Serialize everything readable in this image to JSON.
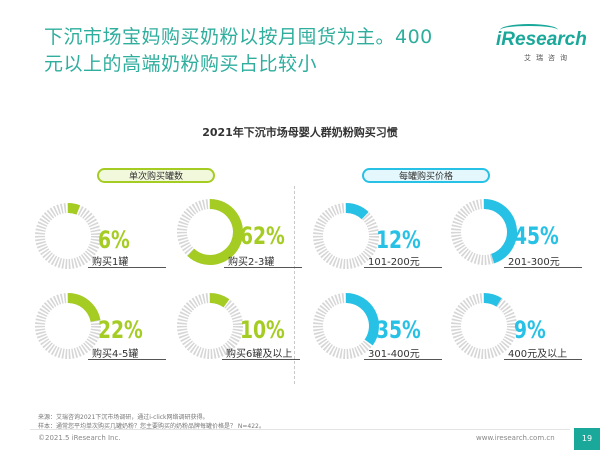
{
  "headline": {
    "line1": "下沉市场宝妈购买奶粉以按月囤货为主。400",
    "line2": "元以上的高端奶粉购买占比较小"
  },
  "logo": {
    "main": "iResearch",
    "sub": "艾瑞咨询"
  },
  "chart_data": [
    {
      "type": "pie",
      "title": "2021年下沉市场母婴人群奶粉购买习惯",
      "group": "单次购买罐数",
      "categories": [
        "购买1罐",
        "购买2-3罐",
        "购买4-5罐",
        "购买6罐及以上"
      ],
      "values": [
        6,
        62,
        22,
        10
      ],
      "value_labels": [
        "6%",
        "62%",
        "22%",
        "10%"
      ],
      "color": "#a5cc23"
    },
    {
      "type": "pie",
      "title": "2021年下沉市场母婴人群奶粉购买习惯",
      "group": "每罐购买价格",
      "categories": [
        "101-200元",
        "201-300元",
        "301-400元",
        "400元及以上"
      ],
      "values": [
        12,
        45,
        35,
        9
      ],
      "value_labels": [
        "12%",
        "45%",
        "35%",
        "9%"
      ],
      "color": "#28c1e6"
    }
  ],
  "footer": {
    "source_line": "来源：艾瑞咨询2021下沉市场调研，通过i-click网络调研获得。",
    "sample_line": "样本：通常您平均单次购买几罐奶粉？您主要购买的奶粉品牌每罐价格是？ N=422。",
    "copyright": "©2021.5 iResearch Inc.",
    "website": "www.iresearch.com.cn",
    "page": "19"
  }
}
